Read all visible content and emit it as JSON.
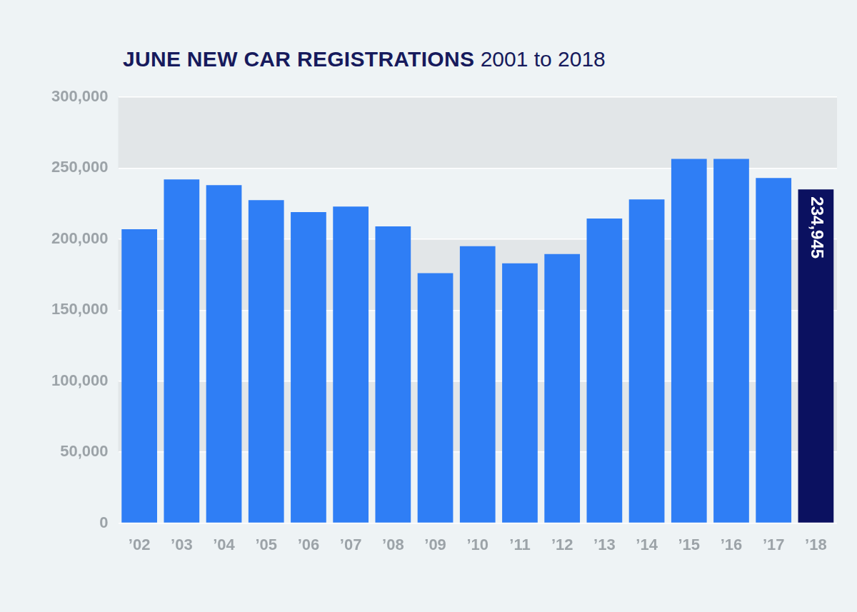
{
  "chart_data": {
    "type": "bar",
    "title": "JUNE NEW CAR REGISTRATIONS",
    "subtitle": "2001 to 2018",
    "categories": [
      "’02",
      "’03",
      "’04",
      "’05",
      "’06",
      "’07",
      "’08",
      "’09",
      "’10",
      "’11",
      "’12",
      "’13",
      "’14",
      "’15",
      "’16",
      "’17",
      "’18"
    ],
    "values": [
      207000,
      242000,
      238000,
      227500,
      219000,
      223000,
      209000,
      176000,
      195000,
      183000,
      189500,
      214500,
      228000,
      256500,
      256500,
      243000,
      234945
    ],
    "value_labels": [
      null,
      null,
      null,
      null,
      null,
      null,
      null,
      null,
      null,
      null,
      null,
      null,
      null,
      null,
      null,
      null,
      "234,945"
    ],
    "colors": [
      "#2f7ef5",
      "#2f7ef5",
      "#2f7ef5",
      "#2f7ef5",
      "#2f7ef5",
      "#2f7ef5",
      "#2f7ef5",
      "#2f7ef5",
      "#2f7ef5",
      "#2f7ef5",
      "#2f7ef5",
      "#2f7ef5",
      "#2f7ef5",
      "#2f7ef5",
      "#2f7ef5",
      "#2f7ef5",
      "#0b1160"
    ],
    "ylim": [
      0,
      300000
    ],
    "yticks": [
      {
        "value": 0,
        "label": "0"
      },
      {
        "value": 50000,
        "label": "50,000"
      },
      {
        "value": 100000,
        "label": "100,000"
      },
      {
        "value": 150000,
        "label": "150,000"
      },
      {
        "value": 200000,
        "label": "200,000"
      },
      {
        "value": 250000,
        "label": "250,000"
      },
      {
        "value": 300000,
        "label": "300,000"
      }
    ],
    "grid": true
  }
}
